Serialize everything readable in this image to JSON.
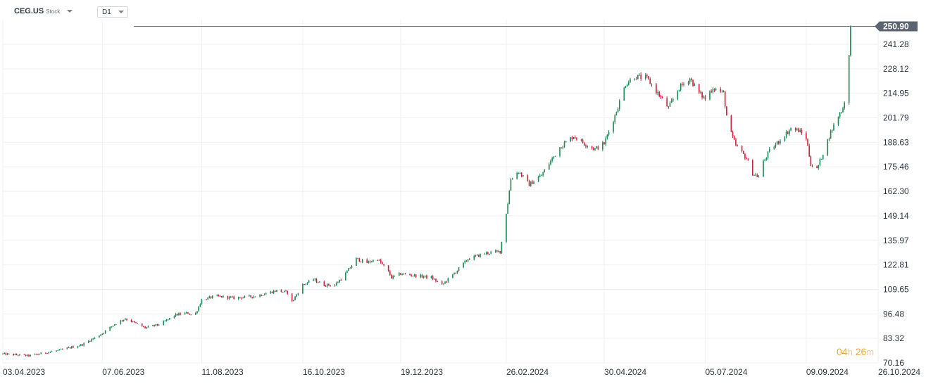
{
  "toolbar": {
    "symbol": "CEG.US",
    "symbol_type": "Stock",
    "timeframe": "D1"
  },
  "countdown": {
    "hours": "04",
    "h_unit": "h",
    "minutes": "26",
    "m_unit": "m"
  },
  "colors": {
    "up": "#1e8a57",
    "down": "#d0213b",
    "grid": "#eef0f2",
    "axis_text": "#2d3640",
    "last_price_tag": "#5b6570"
  },
  "chart_data": {
    "type": "candlestick",
    "title": "",
    "xlabel": "",
    "ylabel": "",
    "ylim": [
      70.16,
      254.5
    ],
    "y_ticks": [
      "70.16",
      "83.32",
      "96.48",
      "109.65",
      "122.81",
      "135.97",
      "149.14",
      "162.30",
      "175.46",
      "188.63",
      "201.79",
      "214.95",
      "228.12",
      "241.28"
    ],
    "last_price": "250.90",
    "x_ticks": [
      "03.04.2023",
      "07.06.2023",
      "11.08.2023",
      "16.10.2023",
      "19.12.2023",
      "26.02.2024",
      "30.04.2024",
      "05.07.2024",
      "09.09.2024",
      "26.10.2024"
    ],
    "date_range": [
      "03.04.2023",
      "26.10.2024"
    ],
    "price_path": [
      [
        "03.04.2023",
        75
      ],
      [
        "20.04.2023",
        74
      ],
      [
        "10.05.2023",
        77
      ],
      [
        "25.05.2023",
        80
      ],
      [
        "07.06.2023",
        86
      ],
      [
        "15.06.2023",
        91
      ],
      [
        "22.06.2023",
        94
      ],
      [
        "05.07.2023",
        89
      ],
      [
        "15.07.2023",
        91
      ],
      [
        "25.07.2023",
        96
      ],
      [
        "02.08.2023",
        97
      ],
      [
        "06.08.2023",
        95
      ],
      [
        "11.08.2023",
        104
      ],
      [
        "20.08.2023",
        106
      ],
      [
        "01.09.2023",
        105
      ],
      [
        "15.09.2023",
        106
      ],
      [
        "29.09.2023",
        109
      ],
      [
        "06.10.2023",
        108
      ],
      [
        "09.10.2023",
        103
      ],
      [
        "16.10.2023",
        112
      ],
      [
        "23.10.2023",
        115
      ],
      [
        "30.10.2023",
        112
      ],
      [
        "06.11.2023",
        112
      ],
      [
        "13.11.2023",
        118
      ],
      [
        "20.11.2023",
        126
      ],
      [
        "27.11.2023",
        124
      ],
      [
        "04.12.2023",
        126
      ],
      [
        "11.12.2023",
        119
      ],
      [
        "13.12.2023",
        116
      ],
      [
        "19.12.2023",
        118
      ],
      [
        "29.12.2023",
        117
      ],
      [
        "08.01.2024",
        116
      ],
      [
        "15.01.2024",
        112
      ],
      [
        "24.01.2024",
        119
      ],
      [
        "01.02.2024",
        126
      ],
      [
        "12.02.2024",
        129
      ],
      [
        "22.02.2024",
        130
      ],
      [
        "27.02.2024",
        156
      ],
      [
        "29.02.2024",
        169
      ],
      [
        "05.03.2024",
        173
      ],
      [
        "12.03.2024",
        166
      ],
      [
        "20.03.2024",
        171
      ],
      [
        "01.04.2024",
        186
      ],
      [
        "10.04.2024",
        192
      ],
      [
        "17.04.2024",
        188
      ],
      [
        "24.04.2024",
        185
      ],
      [
        "30.04.2024",
        188
      ],
      [
        "07.05.2024",
        203
      ],
      [
        "14.05.2024",
        220
      ],
      [
        "20.05.2024",
        224
      ],
      [
        "28.05.2024",
        223
      ],
      [
        "04.06.2024",
        215
      ],
      [
        "11.06.2024",
        207
      ],
      [
        "18.06.2024",
        218
      ],
      [
        "25.06.2024",
        223
      ],
      [
        "01.07.2024",
        215
      ],
      [
        "05.07.2024",
        212
      ],
      [
        "10.07.2024",
        218
      ],
      [
        "17.07.2024",
        215
      ],
      [
        "20.07.2024",
        197
      ],
      [
        "25.07.2024",
        187
      ],
      [
        "01.08.2024",
        180
      ],
      [
        "05.08.2024",
        172
      ],
      [
        "09.08.2024",
        170
      ],
      [
        "12.08.2024",
        178
      ],
      [
        "16.08.2024",
        184
      ],
      [
        "23.08.2024",
        190
      ],
      [
        "30.08.2024",
        196
      ],
      [
        "04.09.2024",
        195
      ],
      [
        "09.09.2024",
        191
      ],
      [
        "12.09.2024",
        177
      ],
      [
        "16.09.2024",
        174
      ],
      [
        "20.09.2024",
        183
      ],
      [
        "25.09.2024",
        194
      ],
      [
        "30.09.2024",
        203
      ],
      [
        "03.10.2024",
        207
      ],
      [
        "04.10.2024",
        211
      ],
      [
        "07.10.2024",
        235
      ],
      [
        "08.10.2024",
        250.9
      ]
    ]
  }
}
